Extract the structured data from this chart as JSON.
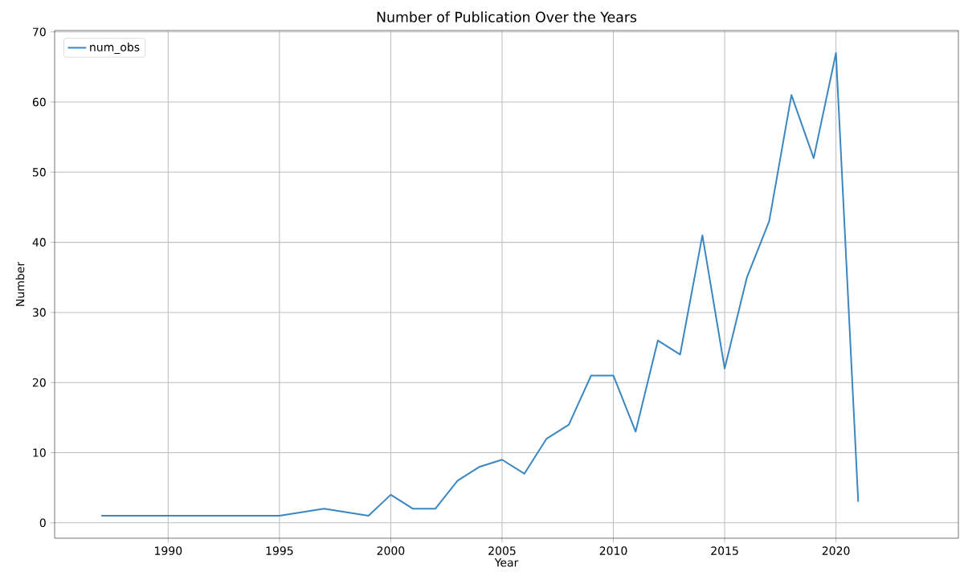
{
  "chart_data": {
    "type": "line",
    "title": "Number of Publication Over the Years",
    "xlabel": "Year",
    "ylabel": "Number",
    "x": [
      1987,
      1995,
      1997,
      1999,
      2000,
      2001,
      2002,
      2003,
      2004,
      2005,
      2006,
      2007,
      2008,
      2009,
      2010,
      2011,
      2012,
      2013,
      2014,
      2015,
      2016,
      2017,
      2018,
      2019,
      2020,
      2021
    ],
    "series": [
      {
        "name": "num_obs",
        "color": "#3a87c2",
        "values": [
          1,
          1,
          2,
          1,
          4,
          2,
          2,
          6,
          8,
          9,
          7,
          12,
          14,
          21,
          21,
          13,
          26,
          24,
          41,
          22,
          35,
          43,
          61,
          52,
          67,
          3
        ]
      }
    ],
    "xlim": [
      1984.9,
      2025.5
    ],
    "ylim": [
      -2.2,
      70.2
    ],
    "xticks": [
      1990,
      1995,
      2000,
      2005,
      2010,
      2015,
      2020
    ],
    "yticks": [
      0,
      10,
      20,
      30,
      40,
      50,
      60,
      70
    ],
    "grid": true,
    "legend": "top left",
    "marker": "none",
    "line_style": "solid"
  }
}
